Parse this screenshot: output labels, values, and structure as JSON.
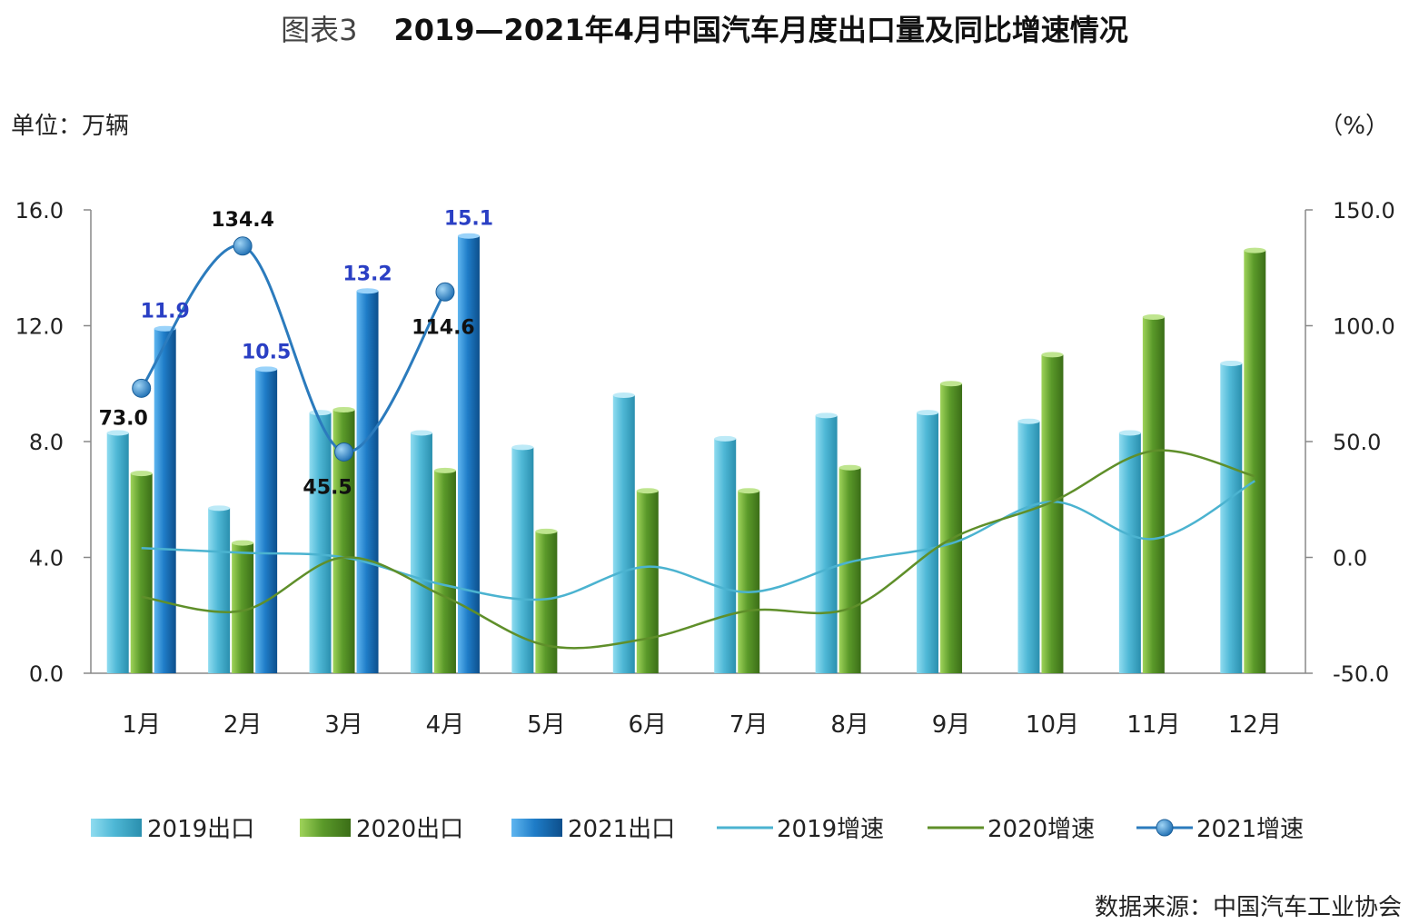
{
  "header": {
    "prefix": "图表3",
    "title": "2019—2021年4月中国汽车月度出口量及同比增速情况"
  },
  "units": {
    "left": "单位：万辆",
    "right": "（%）"
  },
  "source": "数据来源：中国汽车工业协会",
  "colors": {
    "bar2019": "#4fb8d6",
    "bar2020": "#5b9a2a",
    "bar2021": "#1f7dc8",
    "line2019": "#4bb3d0",
    "line2020": "#5f8f2a",
    "line2021": "#2b7bbd"
  },
  "chart_data": {
    "type": "bar",
    "categories": [
      "1月",
      "2月",
      "3月",
      "4月",
      "5月",
      "6月",
      "7月",
      "8月",
      "9月",
      "10月",
      "11月",
      "12月"
    ],
    "ylim": [
      0,
      16
    ],
    "yticks": [
      "0.0",
      "4.0",
      "8.0",
      "12.0",
      "16.0"
    ],
    "y2lim": [
      -50,
      150
    ],
    "y2ticks": [
      "-50.0",
      "0.0",
      "50.0",
      "100.0",
      "150.0"
    ],
    "series": [
      {
        "name": "2019出口",
        "kind": "bar",
        "values": [
          8.3,
          5.7,
          9.0,
          8.3,
          7.8,
          9.6,
          8.1,
          8.9,
          9.0,
          8.7,
          8.3,
          10.7
        ]
      },
      {
        "name": "2020出口",
        "kind": "bar",
        "values": [
          6.9,
          4.5,
          9.1,
          7.0,
          4.9,
          6.3,
          6.3,
          7.1,
          10.0,
          11.0,
          12.3,
          14.6
        ]
      },
      {
        "name": "2021出口",
        "kind": "bar",
        "values": [
          11.9,
          10.5,
          13.2,
          15.1,
          null,
          null,
          null,
          null,
          null,
          null,
          null,
          null
        ],
        "labels": [
          "11.9",
          "10.5",
          "13.2",
          "15.1"
        ]
      },
      {
        "name": "2019增速",
        "kind": "line",
        "axis": "right",
        "values": [
          4,
          2,
          0,
          -12,
          -18,
          -4,
          -15,
          -2,
          6,
          24,
          8,
          33
        ]
      },
      {
        "name": "2020增速",
        "kind": "line",
        "axis": "right",
        "values": [
          -17,
          -23,
          0,
          -17,
          -38,
          -35,
          -23,
          -22,
          8,
          24,
          46,
          35
        ]
      },
      {
        "name": "2021增速",
        "kind": "line",
        "axis": "right",
        "values": [
          73.0,
          134.4,
          45.5,
          114.6,
          null,
          null,
          null,
          null,
          null,
          null,
          null,
          null
        ],
        "labels": [
          "73.0",
          "134.4",
          "45.5",
          "114.6"
        ]
      }
    ]
  }
}
